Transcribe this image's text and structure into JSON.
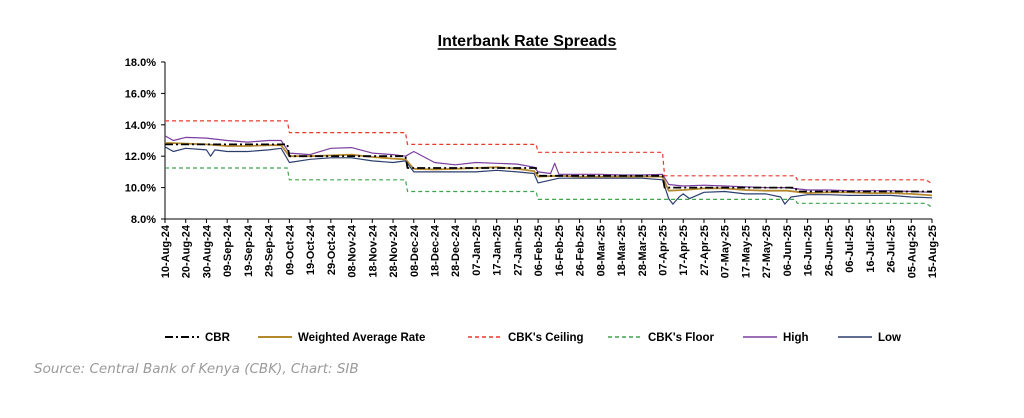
{
  "chart_data": {
    "type": "line",
    "title": "Interbank Rate Spreads",
    "xlabel": "",
    "ylabel": "",
    "ylim": [
      8.0,
      18.0
    ],
    "y_ticks": [
      "8.0%",
      "10.0%",
      "12.0%",
      "14.0%",
      "16.0%",
      "18.0%"
    ],
    "y_tick_values": [
      8,
      10,
      12,
      14,
      16,
      18
    ],
    "x_tick_labels": [
      "10-Aug-24",
      "20-Aug-24",
      "30-Aug-24",
      "09-Sep-24",
      "19-Sep-24",
      "29-Sep-24",
      "09-Oct-24",
      "19-Oct-24",
      "29-Oct-24",
      "08-Nov-24",
      "18-Nov-24",
      "28-Nov-24",
      "08-Dec-24",
      "18-Dec-24",
      "28-Dec-24",
      "07-Jan-25",
      "17-Jan-25",
      "27-Jan-25",
      "06-Feb-25",
      "16-Feb-25",
      "26-Feb-25",
      "08-Mar-25",
      "18-Mar-25",
      "28-Mar-25",
      "07-Apr-25",
      "17-Apr-25",
      "27-Apr-25",
      "07-May-25",
      "17-May-25",
      "27-May-25",
      "06-Jun-25",
      "16-Jun-25",
      "26-Jun-25",
      "06-Jul-25",
      "16-Jul-25",
      "26-Jul-25",
      "05-Aug-25",
      "15-Aug-25"
    ],
    "grid": false,
    "legend_position": "bottom",
    "series": [
      {
        "name": "CBR",
        "color": "#000000",
        "style": "dashdot",
        "points": [
          [
            "10-Aug-24",
            12.75
          ],
          [
            "08-Oct-24",
            12.75
          ],
          [
            "09-Oct-24",
            12.0
          ],
          [
            "04-Dec-24",
            12.0
          ],
          [
            "05-Dec-24",
            11.25
          ],
          [
            "05-Feb-25",
            11.25
          ],
          [
            "06-Feb-25",
            10.75
          ],
          [
            "07-Apr-25",
            10.75
          ],
          [
            "08-Apr-25",
            10.0
          ],
          [
            "10-Jun-25",
            10.0
          ],
          [
            "11-Jun-25",
            9.75
          ],
          [
            "15-Aug-25",
            9.75
          ]
        ]
      },
      {
        "name": "Weighted Average Rate",
        "color": "#b58a2e",
        "style": "solid",
        "points": [
          [
            "10-Aug-24",
            12.85
          ],
          [
            "20-Aug-24",
            12.8
          ],
          [
            "30-Aug-24",
            12.75
          ],
          [
            "09-Sep-24",
            12.65
          ],
          [
            "19-Sep-24",
            12.65
          ],
          [
            "29-Sep-24",
            12.7
          ],
          [
            "05-Oct-24",
            12.7
          ],
          [
            "09-Oct-24",
            12.0
          ],
          [
            "19-Oct-24",
            12.0
          ],
          [
            "29-Oct-24",
            12.05
          ],
          [
            "08-Nov-24",
            12.1
          ],
          [
            "18-Nov-24",
            11.95
          ],
          [
            "28-Nov-24",
            11.85
          ],
          [
            "04-Dec-24",
            11.8
          ],
          [
            "08-Dec-24",
            11.2
          ],
          [
            "18-Dec-24",
            11.15
          ],
          [
            "28-Dec-24",
            11.2
          ],
          [
            "07-Jan-25",
            11.25
          ],
          [
            "17-Jan-25",
            11.3
          ],
          [
            "27-Jan-25",
            11.2
          ],
          [
            "04-Feb-25",
            11.05
          ],
          [
            "06-Feb-25",
            10.7
          ],
          [
            "16-Feb-25",
            10.75
          ],
          [
            "26-Feb-25",
            10.7
          ],
          [
            "08-Mar-25",
            10.7
          ],
          [
            "18-Mar-25",
            10.7
          ],
          [
            "28-Mar-25",
            10.7
          ],
          [
            "07-Apr-25",
            10.7
          ],
          [
            "10-Apr-25",
            9.8
          ],
          [
            "17-Apr-25",
            9.85
          ],
          [
            "27-Apr-25",
            9.95
          ],
          [
            "07-May-25",
            9.95
          ],
          [
            "17-May-25",
            9.85
          ],
          [
            "27-May-25",
            9.8
          ],
          [
            "06-Jun-25",
            9.8
          ],
          [
            "16-Jun-25",
            9.65
          ],
          [
            "26-Jun-25",
            9.7
          ],
          [
            "06-Jul-25",
            9.7
          ],
          [
            "16-Jul-25",
            9.65
          ],
          [
            "26-Jul-25",
            9.65
          ],
          [
            "05-Aug-25",
            9.6
          ],
          [
            "15-Aug-25",
            9.5
          ]
        ]
      },
      {
        "name": "CBK's Ceiling",
        "color": "#e8392b",
        "style": "dashed",
        "points": [
          [
            "10-Aug-24",
            14.25
          ],
          [
            "08-Oct-24",
            14.25
          ],
          [
            "09-Oct-24",
            13.5
          ],
          [
            "04-Dec-24",
            13.5
          ],
          [
            "05-Dec-24",
            12.75
          ],
          [
            "05-Feb-25",
            12.75
          ],
          [
            "06-Feb-25",
            12.25
          ],
          [
            "07-Apr-25",
            12.25
          ],
          [
            "08-Apr-25",
            10.75
          ],
          [
            "10-Jun-25",
            10.75
          ],
          [
            "11-Jun-25",
            10.5
          ],
          [
            "12-Aug-25",
            10.5
          ],
          [
            "15-Aug-25",
            10.25
          ]
        ]
      },
      {
        "name": "CBK's Floor",
        "color": "#3fa34d",
        "style": "dashed",
        "points": [
          [
            "10-Aug-24",
            11.25
          ],
          [
            "08-Oct-24",
            11.25
          ],
          [
            "09-Oct-24",
            10.5
          ],
          [
            "04-Dec-24",
            10.5
          ],
          [
            "05-Dec-24",
            9.75
          ],
          [
            "05-Feb-25",
            9.75
          ],
          [
            "06-Feb-25",
            9.25
          ],
          [
            "07-Apr-25",
            9.25
          ],
          [
            "08-Apr-25",
            9.25
          ],
          [
            "10-Jun-25",
            9.25
          ],
          [
            "11-Jun-25",
            9.0
          ],
          [
            "12-Aug-25",
            9.0
          ],
          [
            "15-Aug-25",
            8.75
          ]
        ]
      },
      {
        "name": "High",
        "color": "#7b3fa0",
        "style": "solid",
        "points": [
          [
            "10-Aug-24",
            13.3
          ],
          [
            "14-Aug-24",
            13.0
          ],
          [
            "20-Aug-24",
            13.2
          ],
          [
            "30-Aug-24",
            13.15
          ],
          [
            "09-Sep-24",
            13.0
          ],
          [
            "19-Sep-24",
            12.9
          ],
          [
            "29-Sep-24",
            13.0
          ],
          [
            "05-Oct-24",
            13.0
          ],
          [
            "09-Oct-24",
            12.2
          ],
          [
            "19-Oct-24",
            12.1
          ],
          [
            "29-Oct-24",
            12.5
          ],
          [
            "08-Nov-24",
            12.55
          ],
          [
            "18-Nov-24",
            12.2
          ],
          [
            "28-Nov-24",
            12.1
          ],
          [
            "04-Dec-24",
            12.0
          ],
          [
            "08-Dec-24",
            12.3
          ],
          [
            "18-Dec-24",
            11.6
          ],
          [
            "28-Dec-24",
            11.45
          ],
          [
            "07-Jan-25",
            11.6
          ],
          [
            "17-Jan-25",
            11.55
          ],
          [
            "27-Jan-25",
            11.5
          ],
          [
            "04-Feb-25",
            11.3
          ],
          [
            "06-Feb-25",
            11.0
          ],
          [
            "12-Feb-25",
            10.9
          ],
          [
            "14-Feb-25",
            11.55
          ],
          [
            "16-Feb-25",
            10.85
          ],
          [
            "26-Feb-25",
            10.85
          ],
          [
            "08-Mar-25",
            10.85
          ],
          [
            "18-Mar-25",
            10.8
          ],
          [
            "28-Mar-25",
            10.8
          ],
          [
            "07-Apr-25",
            10.85
          ],
          [
            "10-Apr-25",
            10.2
          ],
          [
            "17-Apr-25",
            10.1
          ],
          [
            "27-Apr-25",
            10.15
          ],
          [
            "07-May-25",
            10.1
          ],
          [
            "17-May-25",
            10.05
          ],
          [
            "27-May-25",
            10.0
          ],
          [
            "06-Jun-25",
            10.0
          ],
          [
            "16-Jun-25",
            9.85
          ],
          [
            "26-Jun-25",
            9.85
          ],
          [
            "06-Jul-25",
            9.8
          ],
          [
            "16-Jul-25",
            9.8
          ],
          [
            "26-Jul-25",
            9.8
          ],
          [
            "05-Aug-25",
            9.75
          ],
          [
            "15-Aug-25",
            9.7
          ]
        ]
      },
      {
        "name": "Low",
        "color": "#2c3e6e",
        "style": "solid",
        "points": [
          [
            "10-Aug-24",
            12.6
          ],
          [
            "14-Aug-24",
            12.3
          ],
          [
            "20-Aug-24",
            12.5
          ],
          [
            "30-Aug-24",
            12.4
          ],
          [
            "01-Sep-24",
            12.0
          ],
          [
            "03-Sep-24",
            12.4
          ],
          [
            "09-Sep-24",
            12.3
          ],
          [
            "19-Sep-24",
            12.3
          ],
          [
            "29-Sep-24",
            12.4
          ],
          [
            "05-Oct-24",
            12.5
          ],
          [
            "09-Oct-24",
            11.6
          ],
          [
            "19-Oct-24",
            11.8
          ],
          [
            "29-Oct-24",
            11.9
          ],
          [
            "08-Nov-24",
            11.9
          ],
          [
            "18-Nov-24",
            11.7
          ],
          [
            "28-Nov-24",
            11.6
          ],
          [
            "04-Dec-24",
            11.7
          ],
          [
            "08-Dec-24",
            11.0
          ],
          [
            "18-Dec-24",
            11.0
          ],
          [
            "28-Dec-24",
            11.0
          ],
          [
            "07-Jan-25",
            11.0
          ],
          [
            "17-Jan-25",
            11.1
          ],
          [
            "27-Jan-25",
            11.0
          ],
          [
            "04-Feb-25",
            10.9
          ],
          [
            "06-Feb-25",
            10.3
          ],
          [
            "16-Feb-25",
            10.6
          ],
          [
            "26-Feb-25",
            10.6
          ],
          [
            "08-Mar-25",
            10.6
          ],
          [
            "18-Mar-25",
            10.6
          ],
          [
            "28-Mar-25",
            10.6
          ],
          [
            "07-Apr-25",
            10.5
          ],
          [
            "10-Apr-25",
            9.3
          ],
          [
            "12-Apr-25",
            8.95
          ],
          [
            "15-Apr-25",
            9.4
          ],
          [
            "17-Apr-25",
            9.6
          ],
          [
            "20-Apr-25",
            9.3
          ],
          [
            "27-Apr-25",
            9.7
          ],
          [
            "07-May-25",
            9.75
          ],
          [
            "17-May-25",
            9.6
          ],
          [
            "27-May-25",
            9.6
          ],
          [
            "03-Jun-25",
            9.4
          ],
          [
            "05-Jun-25",
            8.95
          ],
          [
            "08-Jun-25",
            9.4
          ],
          [
            "16-Jun-25",
            9.55
          ],
          [
            "26-Jun-25",
            9.55
          ],
          [
            "06-Jul-25",
            9.5
          ],
          [
            "16-Jul-25",
            9.5
          ],
          [
            "26-Jul-25",
            9.5
          ],
          [
            "05-Aug-25",
            9.4
          ],
          [
            "15-Aug-25",
            9.35
          ]
        ]
      }
    ]
  },
  "source_text": "Source: Central Bank of Kenya (CBK), Chart: SIB"
}
